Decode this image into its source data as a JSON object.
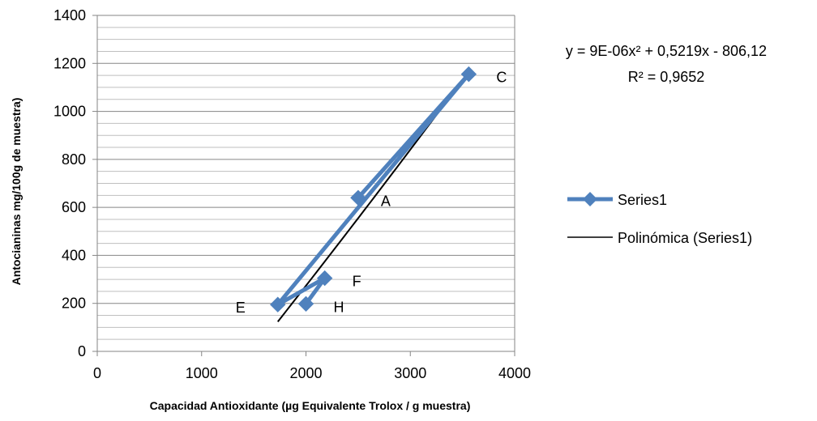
{
  "chart_data": {
    "type": "scatter",
    "xlabel": "Capacidad Antioxidante (µg Equivalente Trolox / g muestra)",
    "ylabel": "Antocianinas mg/100g de muestra)",
    "xlim": [
      0,
      4000
    ],
    "ylim": [
      0,
      1400
    ],
    "x_ticks": [
      "0",
      "1000",
      "2000",
      "3000",
      "4000"
    ],
    "y_ticks": [
      "0",
      "200",
      "400",
      "600",
      "800",
      "1000",
      "1200",
      "1400"
    ],
    "grid": "horizontal major and minor",
    "legend_position": "right",
    "series": [
      {
        "name": "Series1",
        "color": "#4f81bd",
        "marker": "diamond",
        "connected": true,
        "points": [
          {
            "label": "A",
            "x": 2500,
            "y": 640
          },
          {
            "label": "C",
            "x": 3560,
            "y": 1155
          },
          {
            "label": "E",
            "x": 1730,
            "y": 195
          },
          {
            "label": "F",
            "x": 2180,
            "y": 305
          },
          {
            "label": "H",
            "x": 2000,
            "y": 198
          }
        ]
      }
    ],
    "trendline": {
      "name": "Polinómica (Series1)",
      "color": "#000000",
      "type": "polynomial",
      "coefficients": [
        9e-06,
        0.5219,
        -806.12
      ],
      "x_range": [
        1730,
        3560
      ],
      "equation": "y = 9E-06x² + 0,5219x - 806,12",
      "r_squared": "R² = 0,9652"
    }
  }
}
